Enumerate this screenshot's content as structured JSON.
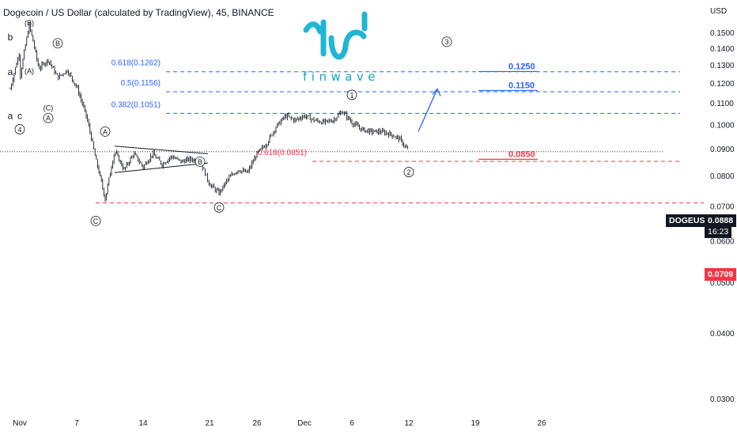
{
  "title": "Dogecoin / US Dollar (calculated by TradingView), 45, BINANCE",
  "currency": "USD",
  "logo": {
    "text": "finwave",
    "color": "#0ea5c4"
  },
  "colors": {
    "candle": "#131722",
    "fib": "#2962ff",
    "support": "#f23645",
    "grid_text": "#131722"
  },
  "symbol_tag": {
    "symbol": "DOGEUSD",
    "price": "0.0888",
    "countdown": "16:23"
  },
  "price_tags": {
    "low": "0.0709"
  },
  "chart_data": {
    "type": "candlestick",
    "title": "Dogecoin / US Dollar (calculated by TradingView), 45, BINANCE",
    "y_axis": {
      "scale": "log",
      "label": "USD",
      "ticks": [
        "0.1500",
        "0.1400",
        "0.1300",
        "0.1200",
        "0.1100",
        "0.1000",
        "0.0900",
        "0.0800",
        "0.0700",
        "0.0600",
        "0.0500",
        "0.0400",
        "0.0300"
      ],
      "range": [
        0.027,
        0.16
      ]
    },
    "x_axis": {
      "ticks": [
        "Nov",
        "7",
        "14",
        "21",
        "26",
        "Dec",
        "6",
        "12",
        "19",
        "26"
      ],
      "tick_dates": [
        "2022-11-01",
        "2022-11-07",
        "2022-11-14",
        "2022-11-21",
        "2022-11-26",
        "2022-12-01",
        "2022-12-06",
        "2022-12-12",
        "2022-12-19",
        "2022-12-26"
      ],
      "range": [
        "2022-10-31",
        "2022-12-30"
      ]
    },
    "price_path": [
      [
        "2022-10-31",
        0.117
      ],
      [
        "2022-11-01",
        0.138
      ],
      [
        "2022-11-01",
        0.122
      ],
      [
        "2022-11-02",
        0.155
      ],
      [
        "2022-11-03",
        0.128
      ],
      [
        "2022-11-04",
        0.133
      ],
      [
        "2022-11-05",
        0.123
      ],
      [
        "2022-11-06",
        0.127
      ],
      [
        "2022-11-07",
        0.118
      ],
      [
        "2022-11-08",
        0.104
      ],
      [
        "2022-11-09",
        0.086
      ],
      [
        "2022-11-10",
        0.072
      ],
      [
        "2022-11-11",
        0.089
      ],
      [
        "2022-11-12",
        0.082
      ],
      [
        "2022-11-13",
        0.088
      ],
      [
        "2022-11-14",
        0.083
      ],
      [
        "2022-11-15",
        0.088
      ],
      [
        "2022-11-16",
        0.084
      ],
      [
        "2022-11-17",
        0.087
      ],
      [
        "2022-11-18",
        0.085
      ],
      [
        "2022-11-19",
        0.086
      ],
      [
        "2022-11-20",
        0.085
      ],
      [
        "2022-11-21",
        0.077
      ],
      [
        "2022-11-22",
        0.074
      ],
      [
        "2022-11-23",
        0.079
      ],
      [
        "2022-11-24",
        0.082
      ],
      [
        "2022-11-25",
        0.081
      ],
      [
        "2022-11-26",
        0.088
      ],
      [
        "2022-11-27",
        0.092
      ],
      [
        "2022-11-28",
        0.099
      ],
      [
        "2022-11-29",
        0.104
      ],
      [
        "2022-11-30",
        0.102
      ],
      [
        "2022-12-01",
        0.104
      ],
      [
        "2022-12-02",
        0.102
      ],
      [
        "2022-12-03",
        0.101
      ],
      [
        "2022-12-04",
        0.102
      ],
      [
        "2022-12-05",
        0.106
      ],
      [
        "2022-12-06",
        0.101
      ],
      [
        "2022-12-07",
        0.098
      ],
      [
        "2022-12-08",
        0.097
      ],
      [
        "2022-12-09",
        0.097
      ],
      [
        "2022-12-10",
        0.096
      ],
      [
        "2022-12-11",
        0.094
      ],
      [
        "2022-12-12",
        0.0888
      ]
    ],
    "fib_levels": [
      {
        "label": "0.618(0.1262)",
        "price": 0.1262
      },
      {
        "label": "0.5(0.1156)",
        "price": 0.1156
      },
      {
        "label": "0.382(0.1051)",
        "price": 0.1051
      },
      {
        "label": "0.618(0.0851)",
        "price": 0.0851
      }
    ],
    "levels": [
      {
        "label": "0.1250",
        "price": 0.125,
        "color": "#2962ff"
      },
      {
        "label": "0.1150",
        "price": 0.115,
        "color": "#2962ff"
      },
      {
        "label": "0.0850",
        "price": 0.085,
        "color": "#f23645"
      }
    ],
    "support_line": {
      "price": 0.0709
    },
    "current_price": 0.0888,
    "wave_labels": [
      {
        "text": "(B)",
        "date": "2022-11-02",
        "price": 0.157
      },
      {
        "text": "b",
        "date": "2022-10-31",
        "price": 0.147
      },
      {
        "text": "B",
        "date": "2022-11-05",
        "price": 0.143,
        "circled": true
      },
      {
        "text": "(A)",
        "date": "2022-11-02",
        "price": 0.127
      },
      {
        "text": "a",
        "date": "2022-10-31",
        "price": 0.126
      },
      {
        "text": "(C)",
        "date": "2022-11-04",
        "price": 0.108
      },
      {
        "text": "a",
        "date": "2022-10-31",
        "price": 0.104
      },
      {
        "text": "c",
        "date": "2022-11-01",
        "price": 0.104
      },
      {
        "text": "A",
        "date": "2022-11-04",
        "price": 0.103,
        "circled": true
      },
      {
        "text": "4",
        "date": "2022-11-01",
        "price": 0.098,
        "circled": true
      },
      {
        "text": "A",
        "date": "2022-11-10",
        "price": 0.097,
        "circled": true
      },
      {
        "text": "B",
        "date": "2022-11-20",
        "price": 0.085,
        "circled": true
      },
      {
        "text": "C",
        "date": "2022-11-09",
        "price": 0.0655,
        "circled": true
      },
      {
        "text": "C",
        "date": "2022-11-22",
        "price": 0.0695,
        "circled": true
      },
      {
        "text": "1",
        "date": "2022-12-06",
        "price": 0.114,
        "circled": true
      },
      {
        "text": "2",
        "date": "2022-12-12",
        "price": 0.0812,
        "circled": true
      },
      {
        "text": "3",
        "date": "2022-12-16",
        "price": 0.144,
        "circled": true
      }
    ],
    "triangle": {
      "start": "2022-11-11",
      "end": "2022-11-20",
      "upper": [
        0.091,
        0.088
      ],
      "lower": [
        0.081,
        0.0845
      ]
    },
    "arrow": {
      "from": [
        "2022-12-13",
        0.097
      ],
      "to": [
        "2022-12-15",
        0.117
      ]
    }
  }
}
